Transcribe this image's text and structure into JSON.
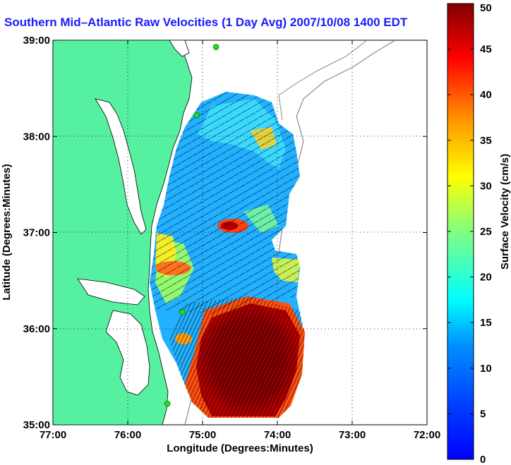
{
  "title": "Southern Mid–Atlantic Raw Velocities (1 Day Avg) 2007/10/08 1400 EDT",
  "map": {
    "x_axis_label": "Longitude (Degrees:Minutes)",
    "y_axis_label": "Latitude (Degrees:Minutes)",
    "x_ticks": [
      {
        "label": "77:00",
        "value": -77
      },
      {
        "label": "76:00",
        "value": -76
      },
      {
        "label": "75:00",
        "value": -75
      },
      {
        "label": "74:00",
        "value": -74
      },
      {
        "label": "73:00",
        "value": -73
      },
      {
        "label": "72:00",
        "value": -72
      }
    ],
    "y_ticks": [
      {
        "label": "39:00",
        "value": 39
      },
      {
        "label": "38:00",
        "value": 38
      },
      {
        "label": "37:00",
        "value": 37
      },
      {
        "label": "36:00",
        "value": 36
      },
      {
        "label": "35:00",
        "value": 35
      }
    ],
    "lon_range": [
      -77,
      -72
    ],
    "lat_range": [
      35,
      39
    ],
    "grid": "dotted",
    "colors": {
      "land": "#55f0a0",
      "station": "#22e022",
      "contour": "#8a8a8a"
    },
    "stations": [
      {
        "lon": -74.82,
        "lat": 38.93
      },
      {
        "lon": -75.08,
        "lat": 38.22
      },
      {
        "lon": -75.27,
        "lat": 36.17
      },
      {
        "lon": -75.47,
        "lat": 35.22
      }
    ]
  },
  "colorbar": {
    "label": "Surface Velocity (cm/s)",
    "unit": "cm/s",
    "min": 0,
    "max": 50,
    "ticks": [
      "0",
      "5",
      "10",
      "15",
      "20",
      "25",
      "30",
      "35",
      "40",
      "45",
      "50"
    ],
    "colormap": "jet"
  }
}
